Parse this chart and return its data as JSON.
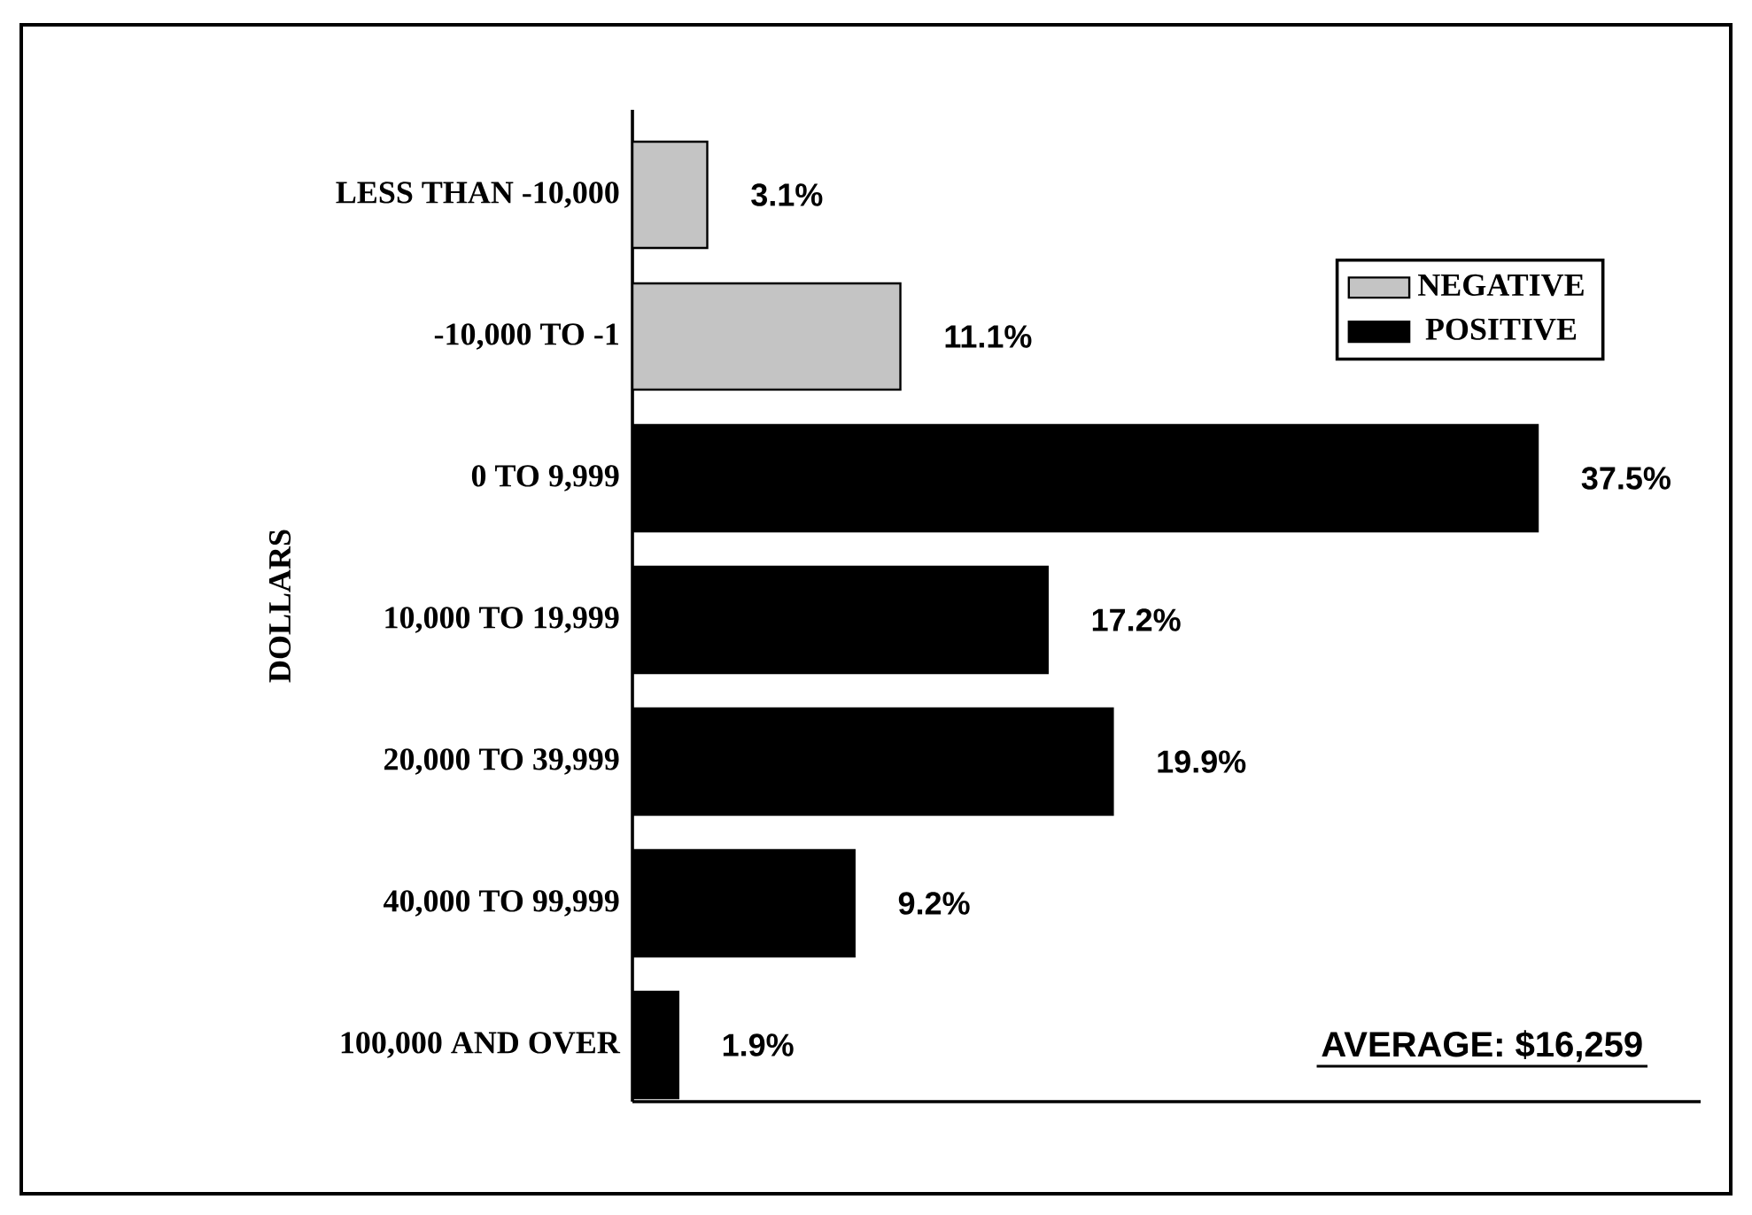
{
  "chart_data": {
    "type": "bar",
    "orientation": "horizontal",
    "ylabel": "DOLLARS",
    "categories": [
      "LESS THAN -10,000",
      "-10,000 TO -1",
      "0 TO 9,999",
      "10,000 TO 19,999",
      "20,000 TO 39,999",
      "40,000 TO 99,999",
      "100,000 AND OVER"
    ],
    "series": [
      {
        "name": "NEGATIVE",
        "color": "#c4c4c4",
        "values": [
          3.1,
          11.1,
          null,
          null,
          null,
          null,
          null
        ],
        "value_labels": [
          "3.1%",
          "11.1%",
          null,
          null,
          null,
          null,
          null
        ]
      },
      {
        "name": "POSITIVE",
        "color": "#000000",
        "values": [
          null,
          null,
          37.5,
          17.2,
          19.9,
          9.2,
          1.9
        ],
        "value_labels": [
          null,
          null,
          "37.5%",
          "17.2%",
          "19.9%",
          "9.2%",
          "1.9%"
        ]
      }
    ],
    "annotations": [
      "AVERAGE: $16,259"
    ],
    "legend": "top right",
    "tick_labels": "y"
  }
}
